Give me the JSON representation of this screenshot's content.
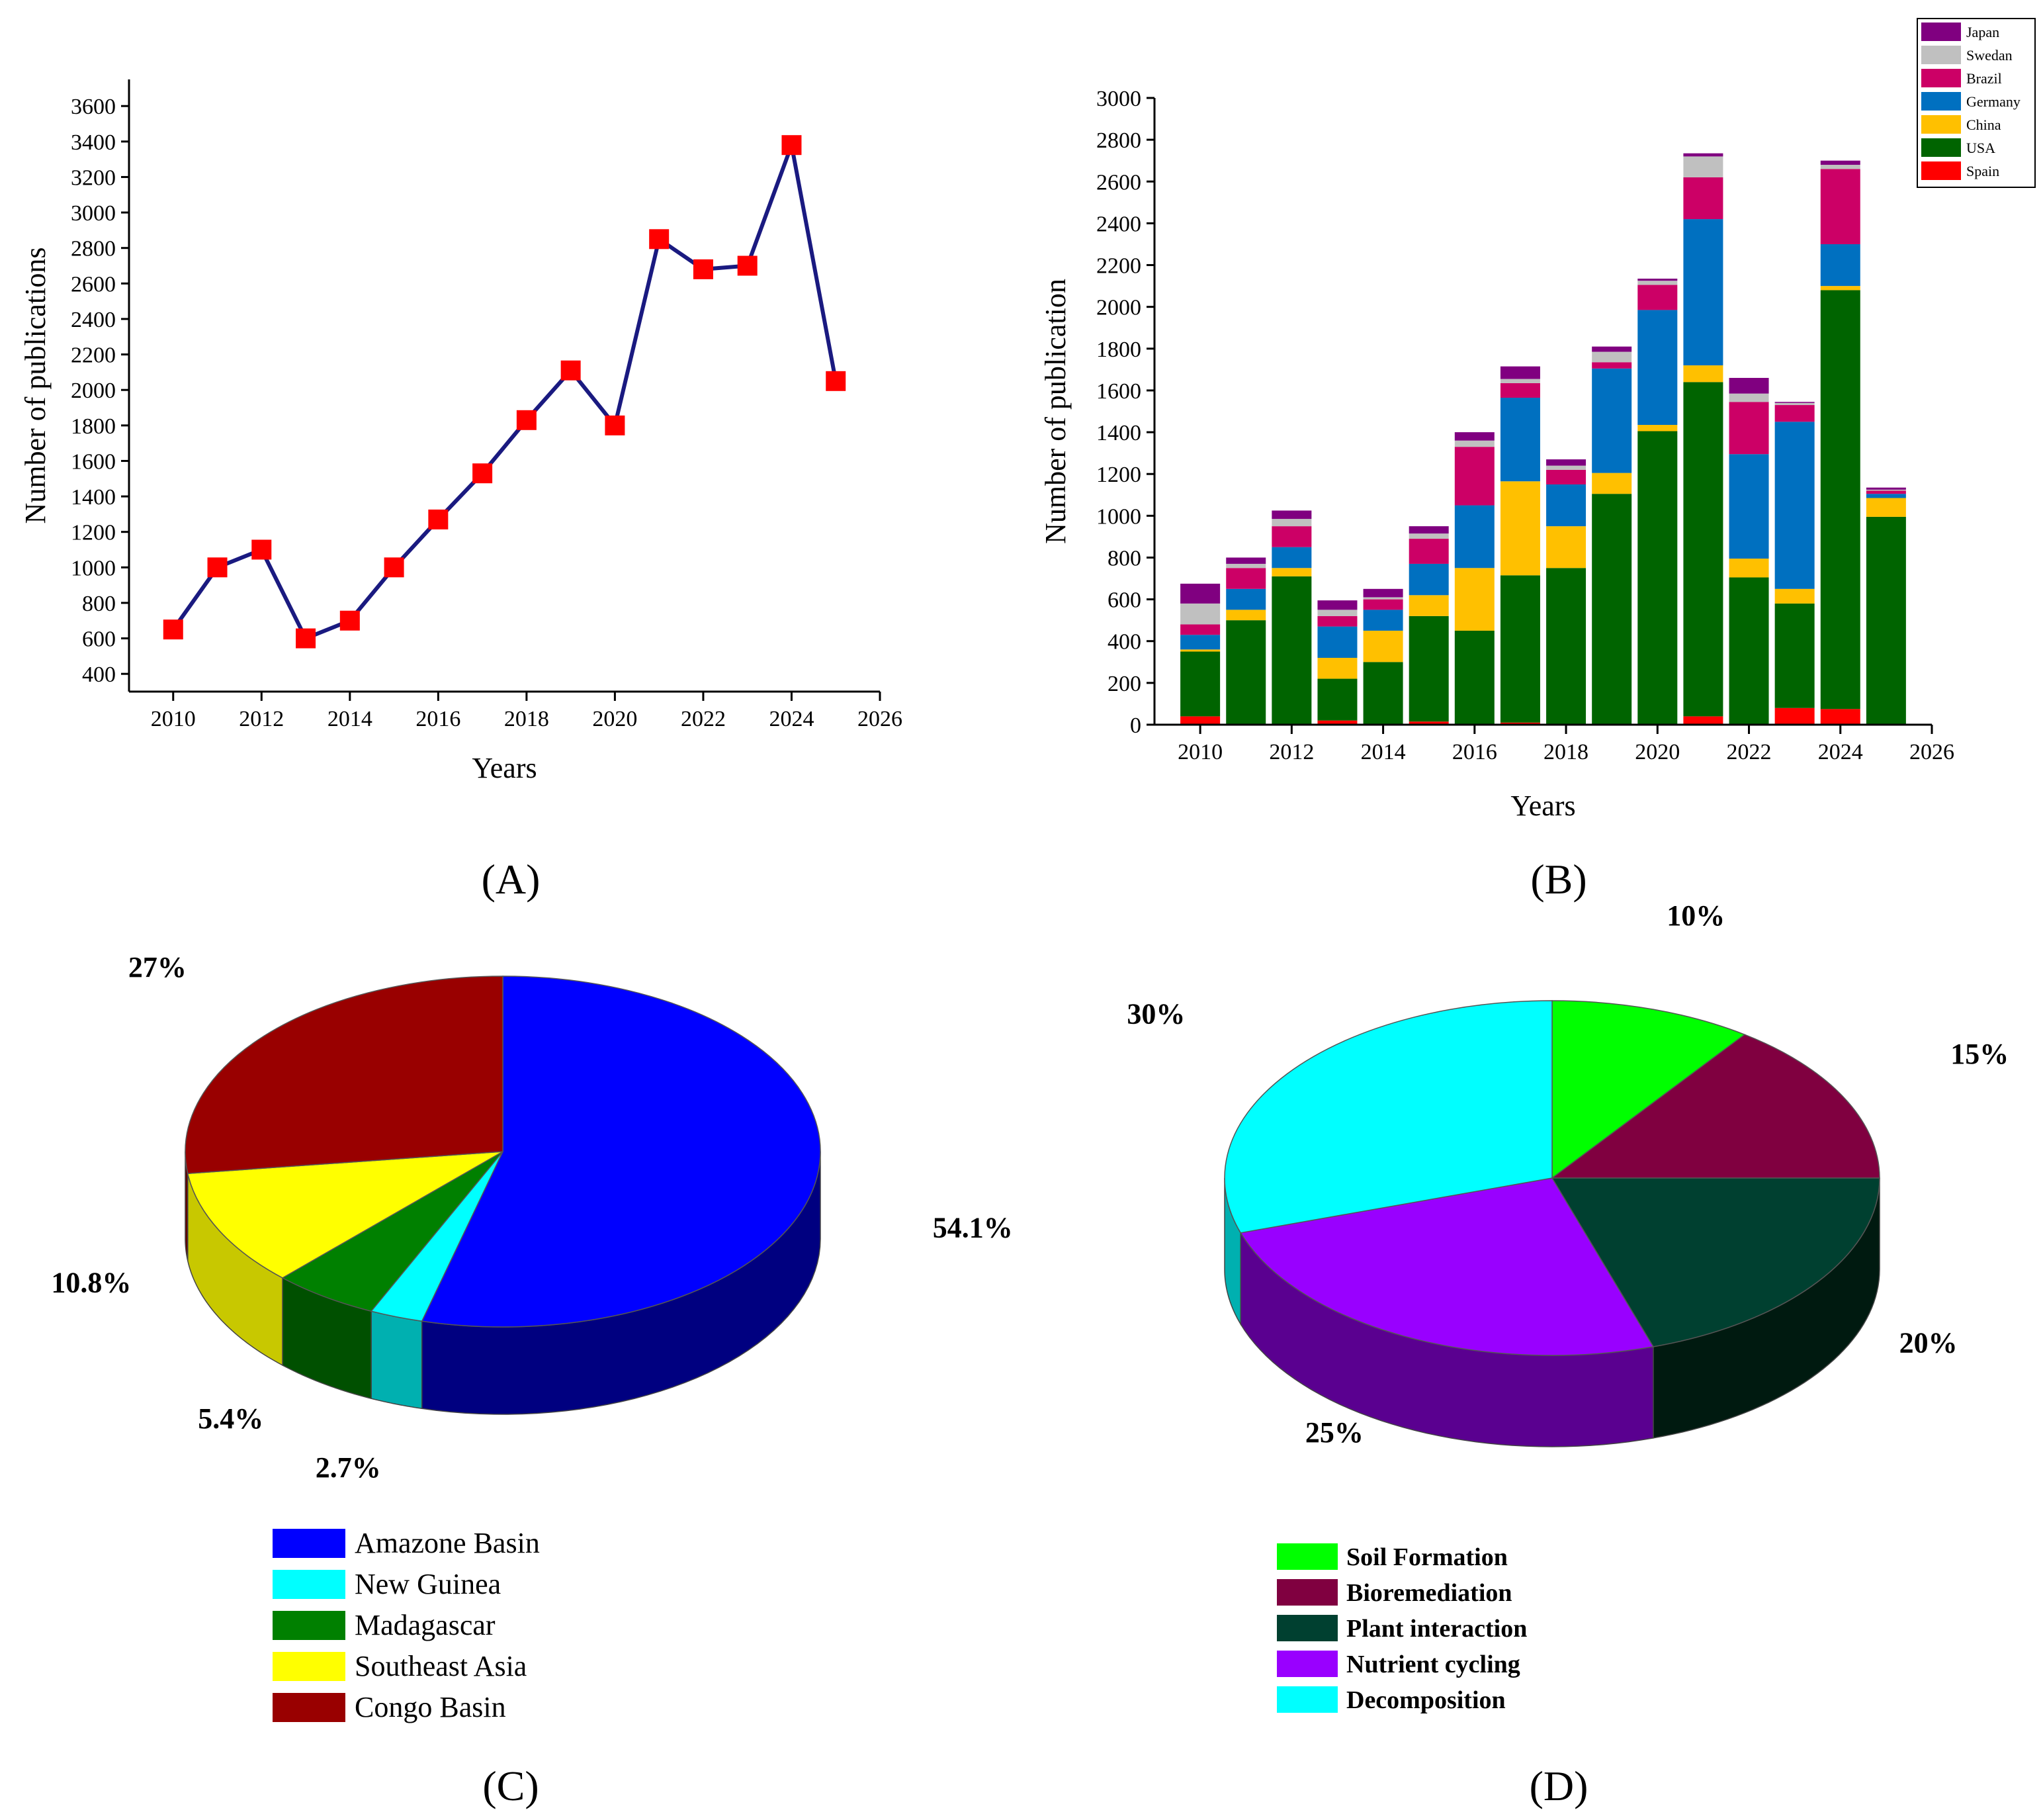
{
  "chart_data": [
    {
      "panel": "A",
      "type": "line",
      "panel_label": "(A)",
      "xlabel": "Years",
      "ylabel": "Number of publications",
      "xlim": [
        2009,
        2026
      ],
      "ylim": [
        300,
        3750
      ],
      "x_ticks": [
        2010,
        2012,
        2014,
        2016,
        2018,
        2020,
        2022,
        2024,
        2026
      ],
      "y_ticks": [
        400,
        600,
        800,
        1000,
        1200,
        1400,
        1600,
        1800,
        2000,
        2200,
        2400,
        2600,
        2800,
        3000,
        3200,
        3400,
        3600
      ],
      "line_color": "#1a1a80",
      "marker_color": "#ff0000",
      "series": [
        {
          "name": "Publications",
          "x": [
            2010,
            2011,
            2012,
            2013,
            2014,
            2015,
            2016,
            2017,
            2018,
            2019,
            2020,
            2021,
            2022,
            2023,
            2024,
            2025
          ],
          "y": [
            650,
            1000,
            1100,
            600,
            700,
            1000,
            1270,
            1530,
            1830,
            2110,
            1800,
            2850,
            2680,
            2700,
            3380,
            2050
          ]
        }
      ]
    },
    {
      "panel": "B",
      "type": "bar",
      "stacked": true,
      "panel_label": "(B)",
      "xlabel": "Years",
      "ylabel": "Number of publication",
      "xlim": [
        2009,
        2026
      ],
      "ylim": [
        0,
        3000
      ],
      "x_ticks": [
        2010,
        2012,
        2014,
        2016,
        2018,
        2020,
        2022,
        2024,
        2026
      ],
      "y_ticks": [
        0,
        200,
        400,
        600,
        800,
        1000,
        1200,
        1400,
        1600,
        1800,
        2000,
        2200,
        2400,
        2600,
        2800,
        3000
      ],
      "categories": [
        2010,
        2011,
        2012,
        2013,
        2014,
        2015,
        2016,
        2017,
        2018,
        2019,
        2020,
        2021,
        2022,
        2023,
        2024,
        2025
      ],
      "series": [
        {
          "name": "Spain",
          "color": "#ff0000",
          "values": [
            40,
            0,
            0,
            20,
            0,
            15,
            0,
            10,
            0,
            0,
            0,
            40,
            0,
            80,
            75,
            0
          ]
        },
        {
          "name": "USA",
          "color": "#006400",
          "values": [
            310,
            500,
            710,
            200,
            300,
            505,
            450,
            705,
            750,
            1105,
            1405,
            1600,
            705,
            500,
            2005,
            995
          ]
        },
        {
          "name": "China",
          "color": "#ffc000",
          "values": [
            10,
            50,
            40,
            100,
            150,
            100,
            300,
            450,
            200,
            100,
            30,
            80,
            90,
            70,
            20,
            90
          ]
        },
        {
          "name": "Germany",
          "color": "#0070c0",
          "values": [
            70,
            100,
            100,
            150,
            100,
            150,
            300,
            400,
            200,
            500,
            550,
            700,
            500,
            800,
            200,
            20
          ]
        },
        {
          "name": "Brazil",
          "color": "#cc0066",
          "values": [
            50,
            100,
            100,
            50,
            50,
            120,
            280,
            70,
            70,
            30,
            120,
            200,
            250,
            80,
            360,
            15
          ]
        },
        {
          "name": "Swedan",
          "color": "#c0c0c0",
          "values": [
            100,
            20,
            35,
            30,
            10,
            25,
            30,
            20,
            20,
            50,
            20,
            100,
            40,
            10,
            20,
            5
          ]
        },
        {
          "name": "Japan",
          "color": "#800080",
          "values": [
            95,
            30,
            40,
            45,
            40,
            35,
            40,
            60,
            30,
            25,
            10,
            15,
            75,
            5,
            20,
            10
          ]
        }
      ],
      "legend_order": [
        "Japan",
        "Swedan",
        "Brazil",
        "Germany",
        "China",
        "USA",
        "Spain"
      ],
      "legend_position": "top-right"
    },
    {
      "panel": "C",
      "type": "pie",
      "style": "3d",
      "panel_label": "(C)",
      "slices": [
        {
          "label": "Amazone Basin",
          "value": 54.1,
          "pct_label": "54.1%",
          "color": "#0000ff",
          "side_color": "#000080"
        },
        {
          "label": "New Guinea",
          "value": 2.7,
          "pct_label": "2.7%",
          "color": "#00ffff",
          "side_color": "#00b0b0"
        },
        {
          "label": "Madagascar",
          "value": 5.4,
          "pct_label": "5.4%",
          "color": "#008000",
          "side_color": "#005000"
        },
        {
          "label": "Southeast Asia",
          "value": 10.8,
          "pct_label": "10.8%",
          "color": "#ffff00",
          "side_color": "#c8c800"
        },
        {
          "label": "Congo Basin",
          "value": 27,
          "pct_label": "27%",
          "color": "#990000",
          "side_color": "#600000"
        }
      ],
      "legend_position": "bottom"
    },
    {
      "panel": "D",
      "type": "pie",
      "style": "3d",
      "panel_label": "(D)",
      "slices": [
        {
          "label": "Soil Formation",
          "value": 10,
          "pct_label": "10%",
          "color": "#00ff00",
          "side_color": "#00b000"
        },
        {
          "label": "Bioremediation",
          "value": 15,
          "pct_label": "15%",
          "color": "#800040",
          "side_color": "#50002a"
        },
        {
          "label": "Plant interaction",
          "value": 20,
          "pct_label": "20%",
          "color": "#004030",
          "side_color": "#001a10"
        },
        {
          "label": "Nutrient cycling",
          "value": 25,
          "pct_label": "25%",
          "color": "#9900ff",
          "side_color": "#5a0090"
        },
        {
          "label": "Decomposition",
          "value": 30,
          "pct_label": "30%",
          "color": "#00ffff",
          "side_color": "#00b0b0"
        }
      ],
      "legend_position": "bottom"
    }
  ]
}
